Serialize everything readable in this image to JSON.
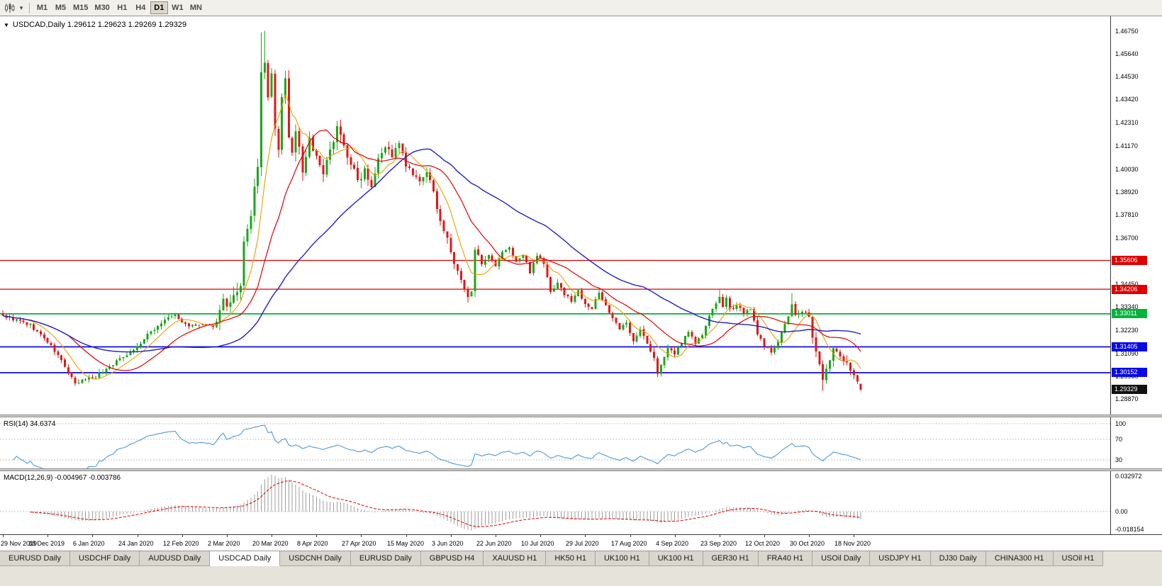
{
  "toolbar": {
    "timeframes": [
      "M1",
      "M5",
      "M15",
      "M30",
      "H1",
      "H4",
      "D1",
      "W1",
      "MN"
    ],
    "selected": "D1"
  },
  "chart": {
    "symbol": "USDCAD",
    "period": "Daily",
    "title_full": "USDCAD,Daily 1.29612 1.29623 1.29269 1.29329",
    "open": "1.29612",
    "high": "1.29623",
    "low": "1.29269",
    "bid": "1.29329"
  },
  "price_axis": {
    "view_max": 1.4746,
    "view_min": 1.2812,
    "ticks": [
      "1.46750",
      "1.45640",
      "1.44530",
      "1.43420",
      "1.42310",
      "1.41170",
      "1.40030",
      "1.38920",
      "1.37810",
      "1.36700",
      "1.35560",
      "1.34450",
      "1.33340",
      "1.32230",
      "1.31090",
      "1.29980",
      "1.28870"
    ],
    "tags": [
      {
        "value": "1.35606",
        "price": 1.35606,
        "color": "#E00000",
        "name": "resistance-price-tag"
      },
      {
        "value": "1.34206",
        "price": 1.34206,
        "color": "#E00000",
        "name": "resistance-price-tag"
      },
      {
        "value": "1.33011",
        "price": 1.33011,
        "color": "#00B43C",
        "name": "level-price-tag"
      },
      {
        "value": "1.31405",
        "price": 1.31405,
        "color": "#0A0AE6",
        "name": "support-price-tag"
      },
      {
        "value": "1.30152",
        "price": 1.30152,
        "color": "#0A0AE6",
        "name": "support-price-tag"
      },
      {
        "value": "1.29329",
        "price": 1.29329,
        "color": "#111111",
        "name": "current-price-tag"
      }
    ]
  },
  "chart_data": {
    "type": "candlestick",
    "symbol": "USDCAD",
    "timeframe": "Daily",
    "bars": 250,
    "up_color": "#1CA71C",
    "down_color": "#E41616",
    "anchors": [
      [
        0,
        1.3292
      ],
      [
        4,
        1.327
      ],
      [
        8,
        1.3245
      ],
      [
        13,
        1.3165
      ],
      [
        17,
        1.3075
      ],
      [
        21,
        1.2958
      ],
      [
        24,
        1.2985
      ],
      [
        27,
        1.3
      ],
      [
        31,
        1.3045
      ],
      [
        35,
        1.3095
      ],
      [
        39,
        1.314
      ],
      [
        43,
        1.3215
      ],
      [
        47,
        1.327
      ],
      [
        50,
        1.3296
      ],
      [
        52,
        1.3258
      ],
      [
        55,
        1.324
      ],
      [
        58,
        1.3248
      ],
      [
        61,
        1.3232
      ],
      [
        63,
        1.331
      ],
      [
        64,
        1.3392
      ],
      [
        65,
        1.333
      ],
      [
        67,
        1.3372
      ],
      [
        69,
        1.342
      ],
      [
        70,
        1.364
      ],
      [
        71,
        1.3725
      ],
      [
        72,
        1.3768
      ],
      [
        73,
        1.39
      ],
      [
        74,
        1.403
      ],
      [
        75,
        1.4455
      ],
      [
        76,
        1.4512
      ],
      [
        77,
        1.434
      ],
      [
        78,
        1.4475
      ],
      [
        79,
        1.419
      ],
      [
        80,
        1.4105
      ],
      [
        81,
        1.4345
      ],
      [
        82,
        1.443
      ],
      [
        83,
        1.4175
      ],
      [
        84,
        1.408
      ],
      [
        85,
        1.4185
      ],
      [
        86,
        1.412
      ],
      [
        87,
        1.3985
      ],
      [
        89,
        1.416
      ],
      [
        91,
        1.4055
      ],
      [
        93,
        1.3975
      ],
      [
        95,
        1.4085
      ],
      [
        97,
        1.4225
      ],
      [
        99,
        1.411
      ],
      [
        101,
        1.4035
      ],
      [
        103,
        1.3945
      ],
      [
        105,
        1.401
      ],
      [
        107,
        1.393
      ],
      [
        109,
        1.4065
      ],
      [
        111,
        1.4115
      ],
      [
        113,
        1.407
      ],
      [
        115,
        1.4125
      ],
      [
        117,
        1.402
      ],
      [
        119,
        1.3975
      ],
      [
        121,
        1.3935
      ],
      [
        123,
        1.3995
      ],
      [
        125,
        1.3885
      ],
      [
        127,
        1.3755
      ],
      [
        129,
        1.366
      ],
      [
        131,
        1.3545
      ],
      [
        133,
        1.346
      ],
      [
        135,
        1.3375
      ],
      [
        136,
        1.342
      ],
      [
        137,
        1.3625
      ],
      [
        139,
        1.3535
      ],
      [
        141,
        1.358
      ],
      [
        143,
        1.3528
      ],
      [
        145,
        1.3605
      ],
      [
        147,
        1.3618
      ],
      [
        149,
        1.3555
      ],
      [
        151,
        1.3585
      ],
      [
        153,
        1.3505
      ],
      [
        155,
        1.359
      ],
      [
        157,
        1.3545
      ],
      [
        159,
        1.3405
      ],
      [
        161,
        1.3455
      ],
      [
        163,
        1.3395
      ],
      [
        165,
        1.3365
      ],
      [
        167,
        1.3412
      ],
      [
        169,
        1.3355
      ],
      [
        171,
        1.3325
      ],
      [
        173,
        1.3405
      ],
      [
        175,
        1.3345
      ],
      [
        177,
        1.3275
      ],
      [
        179,
        1.3225
      ],
      [
        181,
        1.3255
      ],
      [
        183,
        1.3175
      ],
      [
        185,
        1.3225
      ],
      [
        187,
        1.3155
      ],
      [
        189,
        1.3085
      ],
      [
        190,
        1.3005
      ],
      [
        191,
        1.306
      ],
      [
        193,
        1.3128
      ],
      [
        195,
        1.3108
      ],
      [
        197,
        1.3165
      ],
      [
        199,
        1.3218
      ],
      [
        201,
        1.3158
      ],
      [
        203,
        1.3198
      ],
      [
        205,
        1.3285
      ],
      [
        207,
        1.3355
      ],
      [
        208,
        1.3388
      ],
      [
        209,
        1.3328
      ],
      [
        210,
        1.3375
      ],
      [
        211,
        1.3318
      ],
      [
        213,
        1.3348
      ],
      [
        215,
        1.3308
      ],
      [
        217,
        1.3318
      ],
      [
        219,
        1.3208
      ],
      [
        221,
        1.3138
      ],
      [
        223,
        1.3118
      ],
      [
        225,
        1.3168
      ],
      [
        227,
        1.3248
      ],
      [
        229,
        1.3338
      ],
      [
        230,
        1.3298
      ],
      [
        232,
        1.3308
      ],
      [
        234,
        1.3298
      ],
      [
        235,
        1.3178
      ],
      [
        236,
        1.3118
      ],
      [
        237,
        1.3058
      ],
      [
        238,
        1.2985
      ],
      [
        239,
        1.3028
      ],
      [
        240,
        1.3068
      ],
      [
        241,
        1.3128
      ],
      [
        243,
        1.3088
      ],
      [
        245,
        1.3068
      ],
      [
        247,
        1.3008
      ],
      [
        248,
        1.2968
      ],
      [
        249,
        1.29329
      ]
    ],
    "extremes": [
      {
        "i": 21,
        "low": 1.2952
      },
      {
        "i": 75,
        "high": 1.4668
      },
      {
        "i": 76,
        "high": 1.4675
      },
      {
        "i": 190,
        "low": 1.2994
      },
      {
        "i": 208,
        "high": 1.3421
      },
      {
        "i": 229,
        "high": 1.3402
      },
      {
        "i": 238,
        "low": 1.2928
      }
    ],
    "last_bar": {
      "o": 1.29612,
      "h": 1.29623,
      "l": 1.29269,
      "c": 1.29329
    },
    "noise_profile": [
      {
        "from": 0,
        "to": 62,
        "amp": 0.0016
      },
      {
        "from": 63,
        "to": 108,
        "amp": 0.0042
      },
      {
        "from": 109,
        "to": 137,
        "amp": 0.0026
      },
      {
        "from": 138,
        "to": 232,
        "amp": 0.0017
      },
      {
        "from": 233,
        "to": 249,
        "amp": 0.0026
      }
    ],
    "moving_averages": [
      {
        "name": "ma-fast",
        "period": 8,
        "color": "#E8A000",
        "width": 1.1
      },
      {
        "name": "ma-medium",
        "period": 20,
        "color": "#E00000",
        "width": 1.2
      },
      {
        "name": "ma-slow",
        "period": 50,
        "color": "#2020C8",
        "width": 1.4
      }
    ],
    "horizontal_lines": [
      {
        "price": 1.35606,
        "color": "#E00000",
        "width": 1.2,
        "name": "hline-1.35606"
      },
      {
        "price": 1.34206,
        "color": "#E00000",
        "width": 1.2,
        "name": "hline-1.34206"
      },
      {
        "price": 1.33011,
        "color": "#00B43C",
        "width": 1.8,
        "name": "hline-1.33011"
      },
      {
        "price": 1.31405,
        "color": "#0A0AE6",
        "width": 1.8,
        "name": "hline-1.31405"
      },
      {
        "price": 1.30152,
        "color": "#0A0AE6",
        "width": 1.8,
        "name": "hline-1.30152"
      }
    ],
    "date_labels": [
      "29 Nov 2019",
      "18 Dec 2019",
      "6 Jan 2020",
      "24 Jan 2020",
      "12 Feb 2020",
      "2 Mar 2020",
      "20 Mar 2020",
      "8 Apr 2020",
      "27 Apr 2020",
      "15 May 2020",
      "3 Jun 2020",
      "22 Jun 2020",
      "10 Jul 2020",
      "29 Jul 2020",
      "17 Aug 2020",
      "4 Sep 2020",
      "23 Sep 2020",
      "12 Oct 2020",
      "30 Oct 2020",
      "18 Nov 2020"
    ],
    "label_every_bars": 13
  },
  "rsi": {
    "label": "RSI(14) 34.6374",
    "period": 14,
    "value": "34.6374",
    "axis_labels": [
      "100",
      "70",
      "30"
    ],
    "line_color": "#4E9AD4"
  },
  "macd": {
    "label": "MACD(12,26,9) -0.004967 -0.003786",
    "fast": 12,
    "slow": 26,
    "signal": 9,
    "macd_value": "-0.004967",
    "signal_value": "-0.003786",
    "axis_top_label": "0.032972",
    "axis_zero_label": "0.00",
    "axis_bottom_label": "-0.018154",
    "hist_color": "#9E9E9E",
    "signal_color": "#E00000"
  },
  "tabs": {
    "items": [
      {
        "label": "EURUSD Daily",
        "selected": false
      },
      {
        "label": "USDCHF Daily",
        "selected": false
      },
      {
        "label": "AUDUSD Daily",
        "selected": false
      },
      {
        "label": "USDCAD Daily",
        "selected": true
      },
      {
        "label": "USDCNH Daily",
        "selected": false
      },
      {
        "label": "EURUSD Daily",
        "selected": false
      },
      {
        "label": "GBPUSD H4",
        "selected": false
      },
      {
        "label": "XAUUSD H1",
        "selected": false
      },
      {
        "label": "HK50 H1",
        "selected": false
      },
      {
        "label": "UK100 H1",
        "selected": false
      },
      {
        "label": "UK100 H1",
        "selected": false
      },
      {
        "label": "GER30 H1",
        "selected": false
      },
      {
        "label": "FRA40 H1",
        "selected": false
      },
      {
        "label": "USOil Daily",
        "selected": false
      },
      {
        "label": "USDJPY H1",
        "selected": false
      },
      {
        "label": "DJ30 Daily",
        "selected": false
      },
      {
        "label": "CHINA300 H1",
        "selected": false
      },
      {
        "label": "USOil H1",
        "selected": false
      }
    ]
  }
}
